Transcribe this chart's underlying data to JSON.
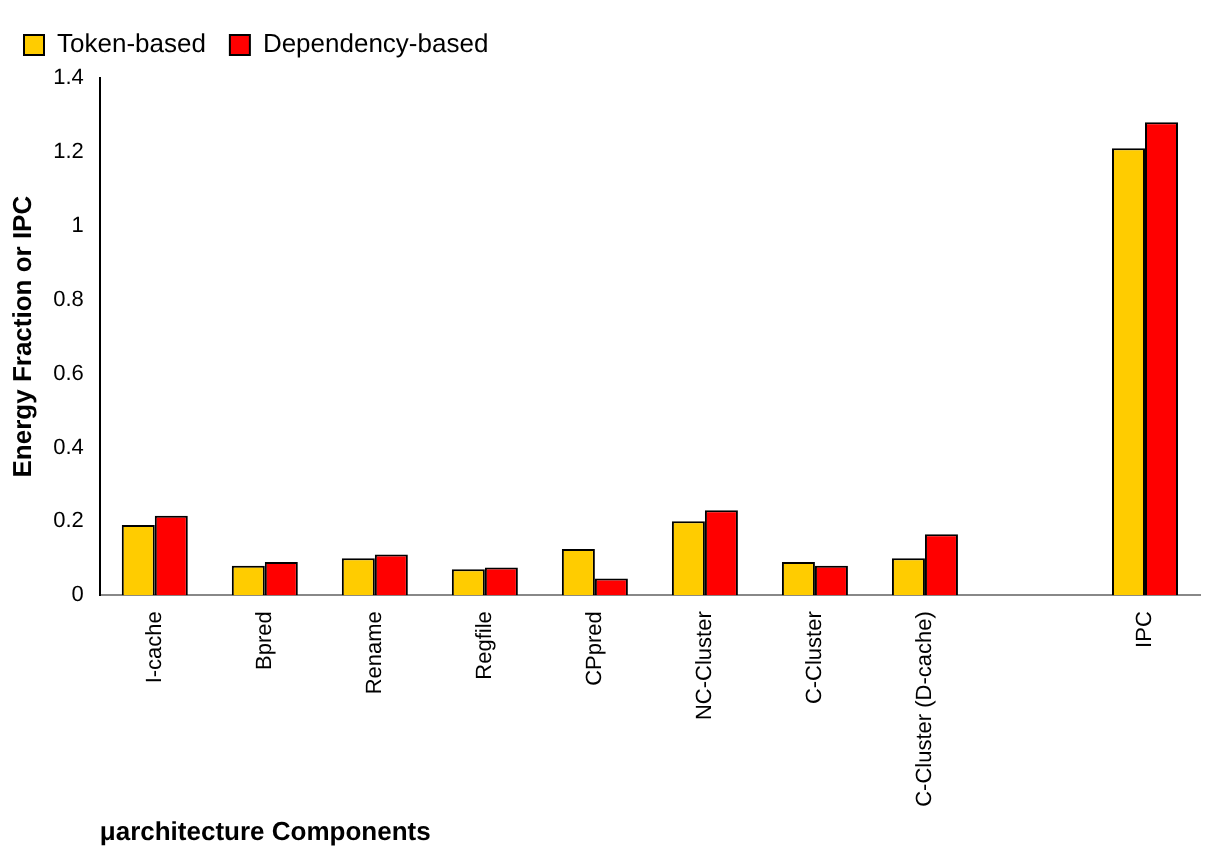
{
  "chart_data": {
    "type": "bar",
    "xlabel": "μarchitecture Components",
    "ylabel": "Energy Fraction or IPC",
    "categories": [
      "I-cache",
      "Bpred",
      "Rename",
      "Regfile",
      "CPpred",
      "NC-Cluster",
      "C-Cluster",
      "C-Cluster (D-cache)",
      null,
      "IPC"
    ],
    "series": [
      {
        "name": "Token-based",
        "color": "#ffcc00",
        "values": [
          0.19,
          0.08,
          0.1,
          0.07,
          0.125,
          0.2,
          0.09,
          0.1,
          null,
          1.21
        ]
      },
      {
        "name": "Dependency-based",
        "color": "#ff0000",
        "values": [
          0.215,
          0.09,
          0.11,
          0.075,
          0.045,
          0.23,
          0.08,
          0.165,
          null,
          1.28
        ]
      }
    ],
    "ylim": [
      0,
      1.4
    ],
    "yticks": [
      0,
      0.2,
      0.4,
      0.6,
      0.8,
      1,
      1.2,
      1.4
    ],
    "grid": false,
    "legend": "top left"
  }
}
